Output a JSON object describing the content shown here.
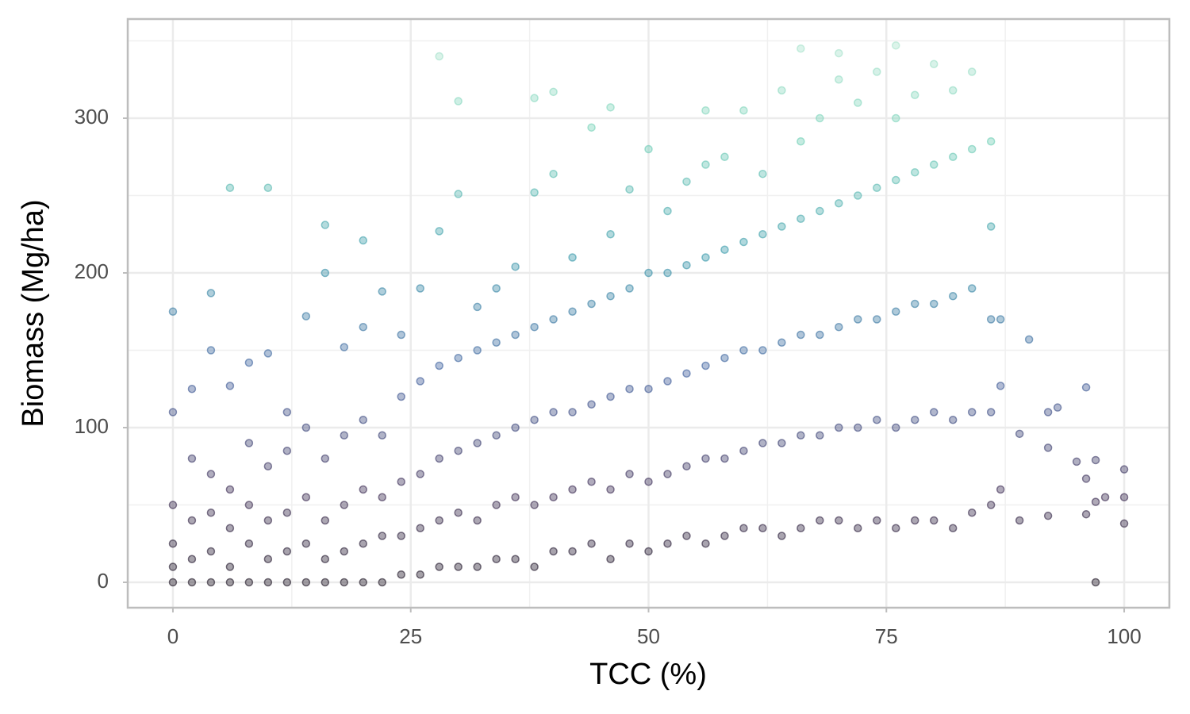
{
  "chart_data": {
    "type": "scatter",
    "x_label": "TCC (%)",
    "y_label": "Biomass (Mg/ha)",
    "xlim": [
      -4.75,
      104.75
    ],
    "ylim": [
      -16.4,
      364.1
    ],
    "xticks": [
      0,
      25,
      50,
      75,
      100
    ],
    "yticks": [
      0,
      100,
      200,
      300
    ],
    "grid": true,
    "opacity": 0.4,
    "colors": [
      "#120c14",
      "#3a2a52",
      "#3b5c9c",
      "#3497a8",
      "#6fd0b5",
      "#b9e8d2"
    ],
    "x": [
      0,
      0,
      0,
      0,
      0,
      0,
      2,
      2,
      2,
      2,
      2,
      4,
      4,
      4,
      4,
      4,
      4,
      6,
      6,
      6,
      6,
      6,
      6,
      8,
      8,
      8,
      8,
      8,
      10,
      10,
      10,
      10,
      10,
      10,
      12,
      12,
      12,
      12,
      12,
      14,
      14,
      14,
      14,
      14,
      16,
      16,
      16,
      16,
      16,
      16,
      18,
      18,
      18,
      18,
      18,
      20,
      20,
      20,
      20,
      20,
      20,
      22,
      22,
      22,
      22,
      22,
      24,
      24,
      24,
      24,
      24,
      26,
      26,
      26,
      26,
      26,
      28,
      28,
      28,
      28,
      28,
      28,
      30,
      30,
      30,
      30,
      30,
      30,
      32,
      32,
      32,
      32,
      32,
      34,
      34,
      34,
      34,
      34,
      36,
      36,
      36,
      36,
      36,
      38,
      38,
      38,
      38,
      38,
      38,
      40,
      40,
      40,
      40,
      40,
      40,
      42,
      42,
      42,
      42,
      42,
      44,
      44,
      44,
      44,
      44,
      46,
      46,
      46,
      46,
      46,
      46,
      48,
      48,
      48,
      48,
      48,
      50,
      50,
      50,
      50,
      50,
      52,
      52,
      52,
      52,
      52,
      54,
      54,
      54,
      54,
      54,
      56,
      56,
      56,
      56,
      56,
      56,
      58,
      58,
      58,
      58,
      58,
      60,
      60,
      60,
      60,
      60,
      62,
      62,
      62,
      62,
      62,
      64,
      64,
      64,
      64,
      64,
      66,
      66,
      66,
      66,
      66,
      66,
      68,
      68,
      68,
      68,
      68,
      70,
      70,
      70,
      70,
      70,
      70,
      72,
      72,
      72,
      72,
      72,
      74,
      74,
      74,
      74,
      74,
      76,
      76,
      76,
      76,
      76,
      76,
      78,
      78,
      78,
      78,
      78,
      80,
      80,
      80,
      80,
      80,
      82,
      82,
      82,
      82,
      82,
      84,
      84,
      84,
      84,
      84,
      86,
      86,
      86,
      86,
      86,
      87,
      87,
      87,
      89,
      89,
      90,
      92,
      92,
      92,
      93,
      95,
      96,
      96,
      96,
      97,
      97,
      97,
      98,
      100,
      100,
      100
    ],
    "y": [
      0,
      10,
      25,
      50,
      110,
      175,
      0,
      15,
      40,
      80,
      125,
      0,
      20,
      45,
      70,
      150,
      187,
      0,
      10,
      35,
      60,
      127,
      255,
      0,
      25,
      50,
      90,
      142,
      0,
      15,
      40,
      75,
      148,
      255,
      0,
      20,
      45,
      85,
      110,
      0,
      25,
      55,
      100,
      172,
      0,
      15,
      40,
      80,
      200,
      231,
      0,
      20,
      50,
      95,
      152,
      0,
      25,
      60,
      105,
      165,
      221,
      0,
      30,
      55,
      95,
      188,
      5,
      30,
      65,
      120,
      160,
      5,
      35,
      70,
      130,
      190,
      10,
      40,
      80,
      140,
      227,
      340,
      10,
      45,
      85,
      145,
      251,
      311,
      10,
      40,
      90,
      150,
      178,
      15,
      50,
      95,
      155,
      190,
      15,
      55,
      100,
      160,
      204,
      10,
      50,
      105,
      165,
      252,
      313,
      20,
      55,
      110,
      170,
      264,
      317,
      20,
      60,
      110,
      175,
      210,
      25,
      65,
      115,
      180,
      294,
      15,
      60,
      120,
      185,
      225,
      307,
      25,
      70,
      125,
      190,
      254,
      20,
      65,
      125,
      200,
      280,
      25,
      70,
      130,
      200,
      240,
      30,
      75,
      135,
      205,
      259,
      25,
      80,
      140,
      210,
      270,
      305,
      30,
      80,
      145,
      215,
      275,
      35,
      85,
      150,
      220,
      305,
      35,
      90,
      150,
      225,
      264,
      30,
      90,
      155,
      230,
      318,
      35,
      95,
      160,
      235,
      285,
      345,
      40,
      95,
      160,
      240,
      300,
      40,
      100,
      165,
      245,
      325,
      342,
      35,
      100,
      170,
      250,
      310,
      40,
      105,
      170,
      255,
      330,
      35,
      100,
      175,
      260,
      300,
      347,
      40,
      105,
      180,
      265,
      315,
      40,
      110,
      180,
      270,
      335,
      35,
      105,
      185,
      275,
      318,
      45,
      110,
      190,
      280,
      330,
      50,
      110,
      170,
      230,
      285,
      60,
      127,
      170,
      40,
      96,
      157,
      43,
      87,
      110,
      113,
      78,
      44,
      67,
      126,
      0,
      52,
      79,
      55,
      38,
      55,
      73
    ]
  }
}
